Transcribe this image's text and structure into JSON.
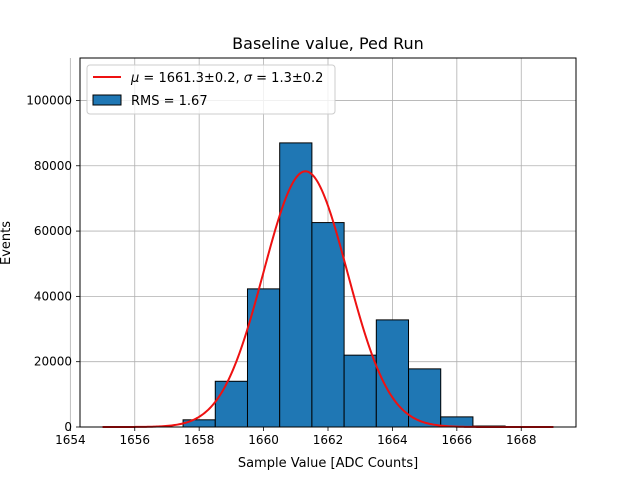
{
  "chart_data": {
    "type": "bar",
    "title": "Baseline value, Ped Run",
    "xlabel": "Sample Value [ADC Counts]",
    "ylabel": "Events",
    "xlim": [
      1654.3,
      1669.7
    ],
    "ylim": [
      0,
      113000
    ],
    "xticks": [
      1654,
      1656,
      1658,
      1660,
      1662,
      1664,
      1666,
      1668
    ],
    "yticks": [
      0,
      20000,
      40000,
      60000,
      80000,
      100000
    ],
    "grid": true,
    "legend_position": "upper-left",
    "bins": [
      {
        "x0": 1657.5,
        "x1": 1658.5,
        "value": 2200
      },
      {
        "x0": 1658.5,
        "x1": 1659.5,
        "value": 14000
      },
      {
        "x0": 1659.5,
        "x1": 1660.5,
        "value": 42300
      },
      {
        "x0": 1660.5,
        "x1": 1661.5,
        "value": 87000
      },
      {
        "x0": 1661.5,
        "x1": 1662.5,
        "value": 62600
      },
      {
        "x0": 1662.5,
        "x1": 1663.5,
        "value": 22000
      },
      {
        "x0": 1663.5,
        "x1": 1664.5,
        "value": 32800
      },
      {
        "x0": 1664.5,
        "x1": 1665.5,
        "value": 17800
      },
      {
        "x0": 1665.5,
        "x1": 1666.5,
        "value": 3100
      },
      {
        "x0": 1666.5,
        "x1": 1667.5,
        "value": 300
      }
    ],
    "fit": {
      "amplitude": 78300,
      "mu": 1661.3,
      "sigma": 1.3,
      "x_start": 1655,
      "x_end": 1669
    },
    "series": [
      {
        "name": "$\\mu=1661.3\\pm0.2$, $\\sigma=1.3\\pm0.2$",
        "type": "line",
        "color": "#ee1111"
      },
      {
        "name": "RMS = 1.67",
        "type": "bar",
        "color": "#1f77b4"
      }
    ],
    "legend": {
      "fit_label_mu": "μ",
      "fit_label_mu_value": " = 1661.3±0.2, ",
      "fit_label_sigma": "σ",
      "fit_label_sigma_value": " = 1.3±0.2",
      "hist_label": "RMS = 1.67"
    },
    "colors": {
      "bar": "#1f77b4",
      "fit": "#ee1111",
      "grid": "#b0b0b0"
    }
  }
}
